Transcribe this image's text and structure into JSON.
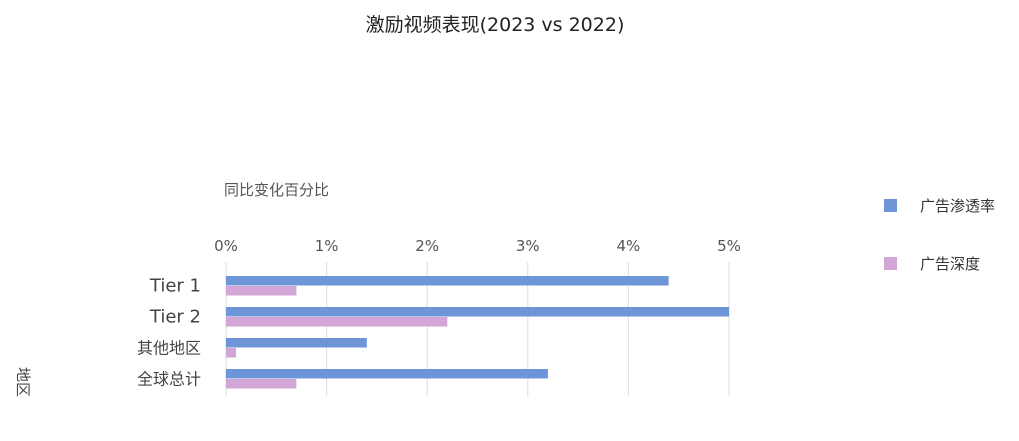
{
  "chart_data": {
    "type": "bar",
    "orientation": "horizontal",
    "title": "激励视频表现(2023 vs 2022)",
    "xlabel": "同比变化百分比",
    "ylabel": "地区",
    "categories": [
      "Tier 1",
      "Tier 2",
      "其他地区",
      "全球总计"
    ],
    "series": [
      {
        "name": "广告渗透率",
        "color": "#6f95d9",
        "values": [
          4.4,
          5.0,
          1.4,
          3.2
        ]
      },
      {
        "name": "广告深度",
        "color": "#d2a6d6",
        "values": [
          0.7,
          2.2,
          0.1,
          0.7
        ]
      }
    ],
    "xlim": [
      0,
      5
    ],
    "xticks": [
      0,
      1,
      2,
      3,
      4,
      5
    ],
    "tick_suffix": "%",
    "grid": true,
    "legend_position": "right"
  }
}
